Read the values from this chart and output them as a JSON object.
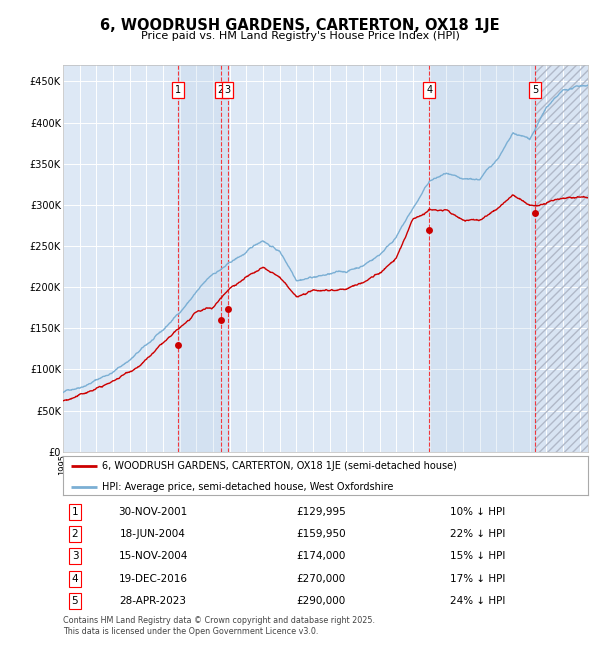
{
  "title": "6, WOODRUSH GARDENS, CARTERTON, OX18 1JE",
  "subtitle": "Price paid vs. HM Land Registry's House Price Index (HPI)",
  "hpi_color": "#7bafd4",
  "price_color": "#cc0000",
  "background_color": "#ffffff",
  "chart_bg_color": "#dde8f5",
  "grid_color": "#ffffff",
  "ylim": [
    0,
    470000
  ],
  "yticks": [
    0,
    50000,
    100000,
    150000,
    200000,
    250000,
    300000,
    350000,
    400000,
    450000
  ],
  "ytick_labels": [
    "£0",
    "£50K",
    "£100K",
    "£150K",
    "£200K",
    "£250K",
    "£300K",
    "£350K",
    "£400K",
    "£450K"
  ],
  "xlim_start": 1995.0,
  "xlim_end": 2026.5,
  "sales": [
    {
      "num": 1,
      "date_dec": 2001.917,
      "price": 129995
    },
    {
      "num": 2,
      "date_dec": 2004.46,
      "price": 159950
    },
    {
      "num": 3,
      "date_dec": 2004.875,
      "price": 174000
    },
    {
      "num": 4,
      "date_dec": 2016.97,
      "price": 270000
    },
    {
      "num": 5,
      "date_dec": 2023.33,
      "price": 290000
    }
  ],
  "legend_line1": "6, WOODRUSH GARDENS, CARTERTON, OX18 1JE (semi-detached house)",
  "legend_line2": "HPI: Average price, semi-detached house, West Oxfordshire",
  "table_rows": [
    {
      "num": "1",
      "date": "30-NOV-2001",
      "price": "£129,995",
      "hpi": "10% ↓ HPI"
    },
    {
      "num": "2",
      "date": "18-JUN-2004",
      "price": "£159,950",
      "hpi": "22% ↓ HPI"
    },
    {
      "num": "3",
      "date": "15-NOV-2004",
      "price": "£174,000",
      "hpi": "15% ↓ HPI"
    },
    {
      "num": "4",
      "date": "19-DEC-2016",
      "price": "£270,000",
      "hpi": "17% ↓ HPI"
    },
    {
      "num": "5",
      "date": "28-APR-2023",
      "price": "£290,000",
      "hpi": "24% ↓ HPI"
    }
  ],
  "footer": "Contains HM Land Registry data © Crown copyright and database right 2025.\nThis data is licensed under the Open Government Licence v3.0."
}
